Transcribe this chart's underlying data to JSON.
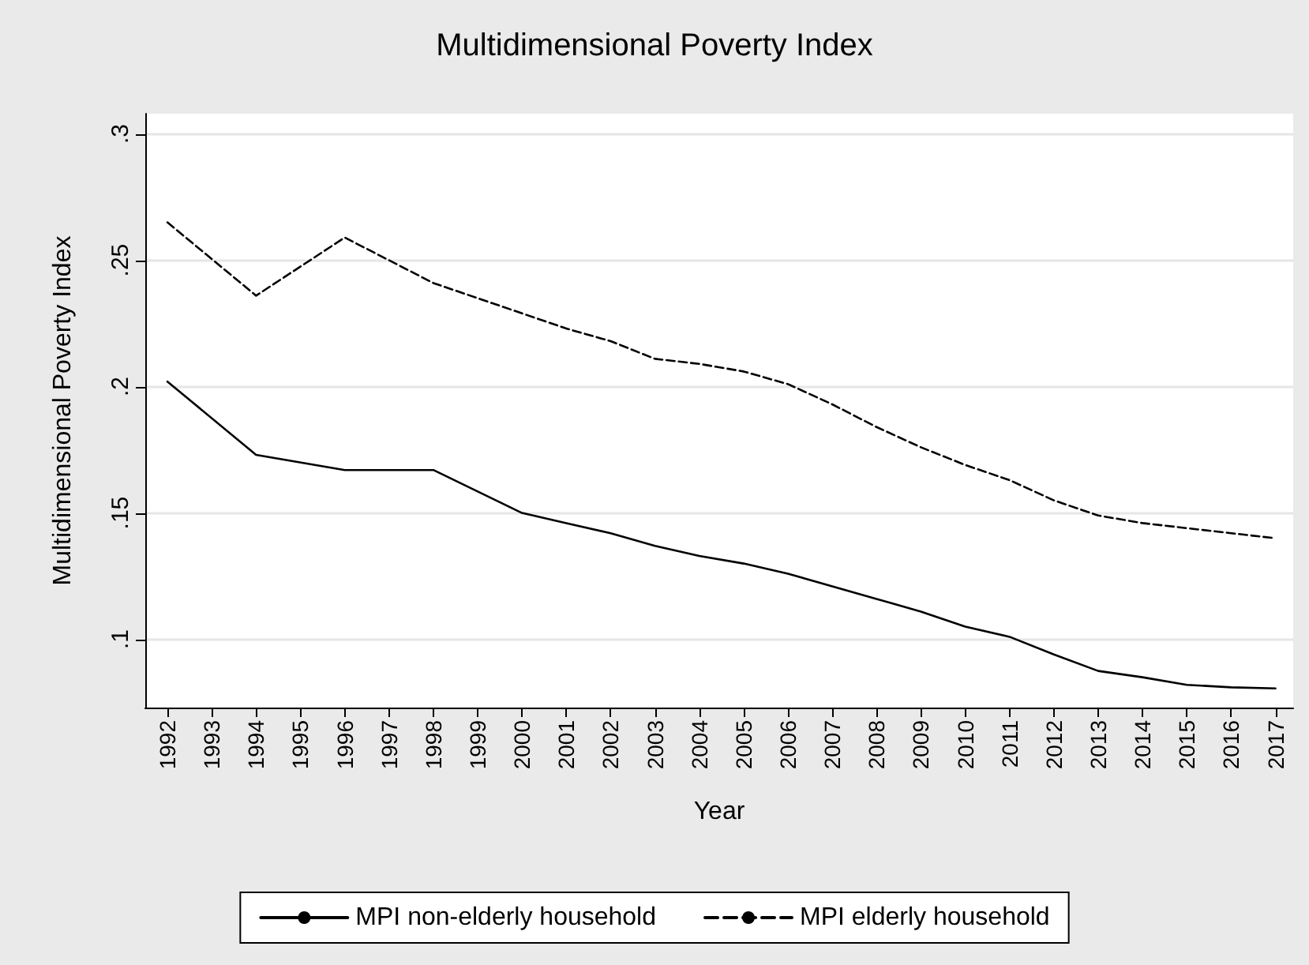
{
  "chart_data": {
    "type": "line",
    "title": "Multidimensional Poverty Index",
    "xlabel": "Year",
    "ylabel": "Multidimensional Poverty Index",
    "x": [
      1992,
      1994,
      1996,
      1998,
      2000,
      2001,
      2002,
      2003,
      2004,
      2005,
      2006,
      2007,
      2008,
      2009,
      2010,
      2011,
      2012,
      2013,
      2014,
      2015,
      2016,
      2017
    ],
    "series": [
      {
        "name": "MPI non-elderly household",
        "color": "#000000",
        "line_style": "solid",
        "values": [
          0.202,
          0.173,
          0.167,
          0.167,
          0.15,
          0.146,
          0.142,
          0.137,
          0.133,
          0.13,
          0.126,
          0.121,
          0.116,
          0.111,
          0.105,
          0.101,
          0.094,
          0.0875,
          0.085,
          0.082,
          0.081,
          0.0806
        ]
      },
      {
        "name": "MPI elderly household",
        "color": "#000000",
        "line_style": "dashed",
        "values": [
          0.265,
          0.236,
          0.259,
          0.241,
          0.229,
          0.223,
          0.218,
          0.211,
          0.209,
          0.206,
          0.201,
          0.193,
          0.184,
          0.176,
          0.169,
          0.163,
          0.155,
          0.149,
          0.146,
          0.144,
          0.142,
          0.14
        ]
      }
    ],
    "xlim": [
      1991.5,
      2017.4
    ],
    "xticks": [
      1992,
      1993,
      1994,
      1995,
      1996,
      1997,
      1998,
      1999,
      2000,
      2001,
      2002,
      2003,
      2004,
      2005,
      2006,
      2007,
      2008,
      2009,
      2010,
      2011,
      2012,
      2013,
      2014,
      2015,
      2016,
      2017
    ],
    "ylim": [
      0.073,
      0.308
    ],
    "yticks": [
      {
        "value": 0.1,
        "label": ".1"
      },
      {
        "value": 0.15,
        "label": ".15"
      },
      {
        "value": 0.2,
        "label": ".2"
      },
      {
        "value": 0.25,
        "label": ".25"
      },
      {
        "value": 0.3,
        "label": ".3"
      }
    ],
    "grid": "y",
    "legend": "bottom",
    "marker": "none"
  }
}
